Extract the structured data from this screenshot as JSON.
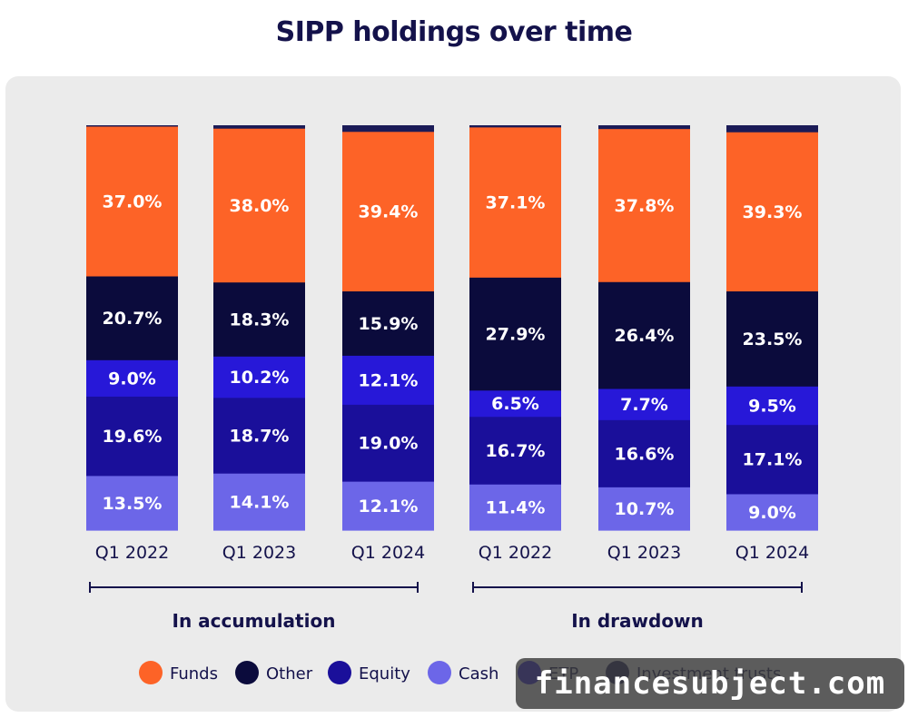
{
  "chart_data": {
    "type": "bar",
    "stacked": true,
    "title": "SIPP holdings over time",
    "categories": [
      "Q1 2022",
      "Q1 2023",
      "Q1 2024",
      "Q1 2022",
      "Q1 2023",
      "Q1 2024"
    ],
    "groups": [
      {
        "label": "In accumulation",
        "categories": [
          0,
          1,
          2
        ]
      },
      {
        "label": "In drawdown",
        "categories": [
          3,
          4,
          5
        ]
      }
    ],
    "series": [
      {
        "name": "Cash",
        "color": "#6c66e8",
        "values": [
          13.5,
          14.1,
          12.1,
          11.4,
          10.7,
          9.0
        ],
        "labels": [
          "13.5%",
          "14.1%",
          "12.1%",
          "11.4%",
          "10.7%",
          "9.0%"
        ]
      },
      {
        "name": "Equity",
        "color": "#1a0f9a",
        "values": [
          19.6,
          18.7,
          19.0,
          16.7,
          16.6,
          17.1
        ],
        "labels": [
          "19.6%",
          "18.7%",
          "19.0%",
          "16.7%",
          "16.6%",
          "17.1%"
        ]
      },
      {
        "name": "ETP",
        "color": "#2718d8",
        "values": [
          9.0,
          10.2,
          12.1,
          6.5,
          7.7,
          9.5
        ],
        "labels": [
          "9.0%",
          "10.2%",
          "12.1%",
          "6.5%",
          "7.7%",
          "9.5%"
        ]
      },
      {
        "name": "Other",
        "color": "#0b0b3c",
        "values": [
          20.7,
          18.3,
          15.9,
          27.9,
          26.4,
          23.5
        ],
        "labels": [
          "20.7%",
          "18.3%",
          "15.9%",
          "27.9%",
          "26.4%",
          "23.5%"
        ]
      },
      {
        "name": "Funds",
        "color": "#fd6327",
        "values": [
          37.0,
          38.0,
          39.4,
          37.1,
          37.8,
          39.3
        ],
        "labels": [
          "37.0%",
          "38.0%",
          "39.4%",
          "37.1%",
          "37.8%",
          "39.3%"
        ]
      },
      {
        "name": "Investment trusts",
        "color": "#1b1b57",
        "values": [
          0.2,
          0.7,
          1.5,
          0.4,
          0.8,
          1.6
        ],
        "labels": []
      }
    ],
    "ylim": [
      0,
      100
    ],
    "legend_position": "bottom",
    "legend_order": [
      "Funds",
      "Other",
      "Equity",
      "Cash",
      "ETP",
      "Investment trusts"
    ]
  },
  "watermark": "financesubject.com"
}
